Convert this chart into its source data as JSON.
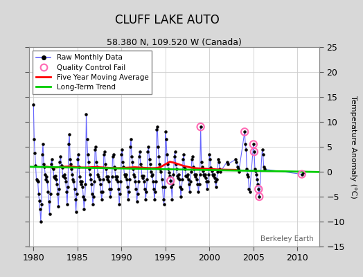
{
  "title": "CLUFF LAKE AUTO",
  "subtitle": "58.380 N, 109.520 W (Canada)",
  "ylabel": "Temperature Anomaly (°C)",
  "watermark": "Berkeley Earth",
  "xlim": [
    1979.5,
    2012.5
  ],
  "ylim": [
    -15,
    25
  ],
  "yticks": [
    -15,
    -10,
    -5,
    0,
    5,
    10,
    15,
    20,
    25
  ],
  "xticks": [
    1980,
    1985,
    1990,
    1995,
    2000,
    2005,
    2010
  ],
  "fig_bg_color": "#d8d8d8",
  "plot_bg_color": "#ffffff",
  "raw_line_color": "#6666ff",
  "raw_dot_color": "#000000",
  "qc_fail_color": "#ff69b4",
  "moving_avg_color": "#ff0000",
  "trend_color": "#00cc00",
  "raw_data": [
    [
      1980.0,
      13.5
    ],
    [
      1980.083,
      6.5
    ],
    [
      1980.167,
      3.8
    ],
    [
      1980.25,
      1.2
    ],
    [
      1980.333,
      -1.5
    ],
    [
      1980.417,
      -1.8
    ],
    [
      1980.5,
      -2.0
    ],
    [
      1980.583,
      -4.5
    ],
    [
      1980.667,
      -5.8
    ],
    [
      1980.75,
      -7.5
    ],
    [
      1980.833,
      -10.0
    ],
    [
      1980.917,
      -6.5
    ],
    [
      1981.0,
      3.5
    ],
    [
      1981.083,
      5.5
    ],
    [
      1981.167,
      1.5
    ],
    [
      1981.25,
      1.0
    ],
    [
      1981.333,
      -0.5
    ],
    [
      1981.417,
      -1.5
    ],
    [
      1981.5,
      -1.0
    ],
    [
      1981.583,
      -2.0
    ],
    [
      1981.667,
      -4.0
    ],
    [
      1981.75,
      -6.0
    ],
    [
      1981.833,
      -8.5
    ],
    [
      1981.917,
      -4.5
    ],
    [
      1982.0,
      1.5
    ],
    [
      1982.083,
      2.5
    ],
    [
      1982.167,
      0.8
    ],
    [
      1982.25,
      0.5
    ],
    [
      1982.333,
      -1.0
    ],
    [
      1982.417,
      -1.2
    ],
    [
      1982.5,
      -0.8
    ],
    [
      1982.583,
      -1.5
    ],
    [
      1982.667,
      -2.5
    ],
    [
      1982.75,
      -4.5
    ],
    [
      1982.833,
      -7.0
    ],
    [
      1982.917,
      -3.5
    ],
    [
      1983.0,
      2.0
    ],
    [
      1983.083,
      3.0
    ],
    [
      1983.167,
      1.2
    ],
    [
      1983.25,
      0.8
    ],
    [
      1983.333,
      -0.8
    ],
    [
      1983.417,
      -1.0
    ],
    [
      1983.5,
      -0.5
    ],
    [
      1983.583,
      -1.2
    ],
    [
      1983.667,
      -2.0
    ],
    [
      1983.75,
      -4.0
    ],
    [
      1983.833,
      -6.5
    ],
    [
      1983.917,
      -3.0
    ],
    [
      1984.0,
      5.5
    ],
    [
      1984.083,
      7.5
    ],
    [
      1984.167,
      2.5
    ],
    [
      1984.25,
      1.5
    ],
    [
      1984.333,
      0.5
    ],
    [
      1984.417,
      -0.5
    ],
    [
      1984.5,
      -1.5
    ],
    [
      1984.583,
      -2.0
    ],
    [
      1984.667,
      -3.5
    ],
    [
      1984.75,
      -5.5
    ],
    [
      1984.833,
      -8.0
    ],
    [
      1984.917,
      -4.5
    ],
    [
      1985.0,
      2.5
    ],
    [
      1985.083,
      3.5
    ],
    [
      1985.167,
      1.0
    ],
    [
      1985.25,
      -1.0
    ],
    [
      1985.333,
      -2.0
    ],
    [
      1985.417,
      -2.5
    ],
    [
      1985.5,
      -2.0
    ],
    [
      1985.583,
      -3.0
    ],
    [
      1985.667,
      -5.0
    ],
    [
      1985.75,
      -7.5
    ],
    [
      1985.833,
      -5.5
    ],
    [
      1985.917,
      -2.5
    ],
    [
      1986.0,
      11.5
    ],
    [
      1986.083,
      6.5
    ],
    [
      1986.167,
      3.5
    ],
    [
      1986.25,
      2.0
    ],
    [
      1986.333,
      0.5
    ],
    [
      1986.417,
      -0.5
    ],
    [
      1986.5,
      -1.5
    ],
    [
      1986.583,
      -2.5
    ],
    [
      1986.667,
      -4.5
    ],
    [
      1986.75,
      -6.5
    ],
    [
      1986.833,
      -5.0
    ],
    [
      1986.917,
      -2.0
    ],
    [
      1987.0,
      4.5
    ],
    [
      1987.083,
      5.0
    ],
    [
      1987.167,
      2.0
    ],
    [
      1987.25,
      1.0
    ],
    [
      1987.333,
      -0.5
    ],
    [
      1987.417,
      -1.0
    ],
    [
      1987.5,
      -1.5
    ],
    [
      1987.583,
      -2.5
    ],
    [
      1987.667,
      -4.0
    ],
    [
      1987.75,
      -5.5
    ],
    [
      1987.833,
      -4.0
    ],
    [
      1987.917,
      -1.5
    ],
    [
      1988.0,
      3.5
    ],
    [
      1988.083,
      4.0
    ],
    [
      1988.167,
      1.5
    ],
    [
      1988.25,
      0.5
    ],
    [
      1988.333,
      -1.0
    ],
    [
      1988.417,
      -1.5
    ],
    [
      1988.5,
      -1.0
    ],
    [
      1988.583,
      -2.0
    ],
    [
      1988.667,
      -3.5
    ],
    [
      1988.75,
      -5.0
    ],
    [
      1988.833,
      -3.5
    ],
    [
      1988.917,
      -1.0
    ],
    [
      1989.0,
      3.0
    ],
    [
      1989.083,
      3.5
    ],
    [
      1989.167,
      1.0
    ],
    [
      1989.25,
      0.5
    ],
    [
      1989.333,
      -1.0
    ],
    [
      1989.417,
      -1.5
    ],
    [
      1989.5,
      -1.0
    ],
    [
      1989.583,
      -2.0
    ],
    [
      1989.667,
      -3.5
    ],
    [
      1989.75,
      -6.5
    ],
    [
      1989.833,
      -4.5
    ],
    [
      1989.917,
      -2.0
    ],
    [
      1990.0,
      3.5
    ],
    [
      1990.083,
      4.5
    ],
    [
      1990.167,
      2.0
    ],
    [
      1990.25,
      1.0
    ],
    [
      1990.333,
      -0.5
    ],
    [
      1990.417,
      -1.0
    ],
    [
      1990.5,
      -0.5
    ],
    [
      1990.583,
      -1.5
    ],
    [
      1990.667,
      -3.0
    ],
    [
      1990.75,
      -5.5
    ],
    [
      1990.833,
      -4.0
    ],
    [
      1990.917,
      -1.5
    ],
    [
      1991.0,
      5.0
    ],
    [
      1991.083,
      6.5
    ],
    [
      1991.167,
      3.0
    ],
    [
      1991.25,
      2.0
    ],
    [
      1991.333,
      0.5
    ],
    [
      1991.417,
      -0.5
    ],
    [
      1991.5,
      -1.0
    ],
    [
      1991.583,
      -2.0
    ],
    [
      1991.667,
      -3.5
    ],
    [
      1991.75,
      -6.0
    ],
    [
      1991.833,
      -4.5
    ],
    [
      1991.917,
      -2.0
    ],
    [
      1992.0,
      3.0
    ],
    [
      1992.083,
      4.0
    ],
    [
      1992.167,
      1.5
    ],
    [
      1992.25,
      0.8
    ],
    [
      1992.333,
      -0.8
    ],
    [
      1992.417,
      -1.2
    ],
    [
      1992.5,
      -0.8
    ],
    [
      1992.583,
      -2.0
    ],
    [
      1992.667,
      -3.5
    ],
    [
      1992.75,
      -5.5
    ],
    [
      1992.833,
      -4.0
    ],
    [
      1992.917,
      -1.5
    ],
    [
      1993.0,
      4.0
    ],
    [
      1993.083,
      5.0
    ],
    [
      1993.167,
      2.5
    ],
    [
      1993.25,
      1.5
    ],
    [
      1993.333,
      0.0
    ],
    [
      1993.417,
      -0.8
    ],
    [
      1993.5,
      -0.5
    ],
    [
      1993.583,
      -2.0
    ],
    [
      1993.667,
      -3.5
    ],
    [
      1993.75,
      -5.5
    ],
    [
      1993.833,
      -4.0
    ],
    [
      1993.917,
      -2.0
    ],
    [
      1994.0,
      8.5
    ],
    [
      1994.083,
      9.0
    ],
    [
      1994.167,
      5.0
    ],
    [
      1994.25,
      3.0
    ],
    [
      1994.333,
      1.5
    ],
    [
      1994.417,
      0.5
    ],
    [
      1994.5,
      0.0
    ],
    [
      1994.583,
      -1.5
    ],
    [
      1994.667,
      -3.0
    ],
    [
      1994.75,
      -5.5
    ],
    [
      1994.833,
      -6.5
    ],
    [
      1994.917,
      -3.0
    ],
    [
      1995.0,
      8.0
    ],
    [
      1995.083,
      6.5
    ],
    [
      1995.167,
      3.5
    ],
    [
      1995.25,
      1.5
    ],
    [
      1995.333,
      0.5
    ],
    [
      1995.417,
      -0.2
    ],
    [
      1995.5,
      -0.8
    ],
    [
      1995.583,
      -1.8
    ],
    [
      1995.667,
      -3.0
    ],
    [
      1995.75,
      -5.5
    ],
    [
      1995.833,
      -2.5
    ],
    [
      1995.917,
      -0.5
    ],
    [
      1996.0,
      3.0
    ],
    [
      1996.083,
      4.0
    ],
    [
      1996.167,
      1.5
    ],
    [
      1996.25,
      0.5
    ],
    [
      1996.333,
      -0.8
    ],
    [
      1996.417,
      -1.2
    ],
    [
      1996.5,
      -0.5
    ],
    [
      1996.583,
      -1.5
    ],
    [
      1996.667,
      -3.0
    ],
    [
      1996.75,
      -5.0
    ],
    [
      1996.833,
      -3.5
    ],
    [
      1996.917,
      -1.5
    ],
    [
      1997.0,
      2.5
    ],
    [
      1997.083,
      3.5
    ],
    [
      1997.167,
      1.0
    ],
    [
      1997.25,
      0.5
    ],
    [
      1997.333,
      -0.8
    ],
    [
      1997.417,
      -1.0
    ],
    [
      1997.5,
      -0.5
    ],
    [
      1997.583,
      -1.5
    ],
    [
      1997.667,
      -2.5
    ],
    [
      1997.75,
      -4.0
    ],
    [
      1997.833,
      -2.0
    ],
    [
      1997.917,
      0.0
    ],
    [
      1998.0,
      2.5
    ],
    [
      1998.083,
      3.0
    ],
    [
      1998.167,
      1.0
    ],
    [
      1998.25,
      0.5
    ],
    [
      1998.333,
      -0.5
    ],
    [
      1998.417,
      -1.0
    ],
    [
      1998.5,
      -0.5
    ],
    [
      1998.583,
      -1.5
    ],
    [
      1998.667,
      -2.5
    ],
    [
      1998.75,
      -4.0
    ],
    [
      1998.833,
      -2.5
    ],
    [
      1998.917,
      -0.5
    ],
    [
      1999.0,
      9.0
    ],
    [
      1999.083,
      2.0
    ],
    [
      1999.167,
      1.0
    ],
    [
      1999.25,
      0.2
    ],
    [
      1999.333,
      -0.5
    ],
    [
      1999.417,
      -0.8
    ],
    [
      1999.5,
      -0.5
    ],
    [
      1999.583,
      -1.2
    ],
    [
      1999.667,
      -2.0
    ],
    [
      1999.75,
      -3.5
    ],
    [
      1999.833,
      -2.0
    ],
    [
      1999.917,
      -0.5
    ],
    [
      2000.0,
      3.5
    ],
    [
      2000.083,
      2.5
    ],
    [
      2000.167,
      0.8
    ],
    [
      2000.25,
      0.2
    ],
    [
      2000.333,
      -0.5
    ],
    [
      2000.417,
      -0.8
    ],
    [
      2000.5,
      -0.5
    ],
    [
      2000.583,
      -1.2
    ],
    [
      2000.667,
      -2.0
    ],
    [
      2000.75,
      -3.0
    ],
    [
      2000.833,
      -1.5
    ],
    [
      2000.917,
      0.0
    ],
    [
      2001.0,
      2.5
    ],
    [
      2001.083,
      2.0
    ],
    [
      2001.167,
      0.5
    ],
    [
      2001.25,
      0.0
    ],
    [
      2002.0,
      2.0
    ],
    [
      2002.083,
      1.5
    ],
    [
      2003.0,
      2.5
    ],
    [
      2003.083,
      2.0
    ],
    [
      2003.167,
      1.0
    ],
    [
      2003.25,
      0.5
    ],
    [
      2003.333,
      0.0
    ],
    [
      2004.0,
      8.0
    ],
    [
      2004.083,
      5.5
    ],
    [
      2004.167,
      4.5
    ],
    [
      2004.25,
      0.5
    ],
    [
      2004.333,
      -0.5
    ],
    [
      2004.417,
      -1.0
    ],
    [
      2004.5,
      -3.5
    ],
    [
      2004.583,
      -4.0
    ],
    [
      2005.0,
      5.5
    ],
    [
      2005.083,
      4.0
    ],
    [
      2005.167,
      0.5
    ],
    [
      2005.25,
      0.2
    ],
    [
      2005.333,
      -0.5
    ],
    [
      2005.417,
      -1.5
    ],
    [
      2005.5,
      -2.5
    ],
    [
      2005.583,
      -3.5
    ],
    [
      2005.667,
      -5.0
    ],
    [
      2006.0,
      4.5
    ],
    [
      2006.083,
      3.5
    ],
    [
      2006.167,
      1.0
    ],
    [
      2006.25,
      0.5
    ],
    [
      2010.5,
      -0.5
    ],
    [
      2010.667,
      -0.2
    ]
  ],
  "qc_fail_points": [
    [
      1995.583,
      -1.8
    ],
    [
      1999.0,
      9.0
    ],
    [
      2004.0,
      8.0
    ],
    [
      2005.0,
      5.5
    ],
    [
      2005.083,
      4.0
    ],
    [
      2005.583,
      -3.5
    ],
    [
      2005.667,
      -5.0
    ],
    [
      2010.5,
      -0.5
    ]
  ],
  "moving_avg": [
    [
      1981.5,
      1.0
    ],
    [
      1982.0,
      0.9
    ],
    [
      1982.5,
      0.85
    ],
    [
      1983.0,
      0.9
    ],
    [
      1983.5,
      1.0
    ],
    [
      1984.0,
      1.05
    ],
    [
      1984.5,
      1.0
    ],
    [
      1985.0,
      0.9
    ],
    [
      1985.5,
      0.85
    ],
    [
      1986.0,
      0.85
    ],
    [
      1986.5,
      0.9
    ],
    [
      1987.0,
      0.95
    ],
    [
      1987.5,
      0.9
    ],
    [
      1988.0,
      0.85
    ],
    [
      1988.5,
      0.8
    ],
    [
      1989.0,
      0.75
    ],
    [
      1989.5,
      0.72
    ],
    [
      1990.0,
      0.75
    ],
    [
      1990.5,
      0.8
    ],
    [
      1991.0,
      0.85
    ],
    [
      1991.5,
      0.9
    ],
    [
      1992.0,
      0.85
    ],
    [
      1992.5,
      0.8
    ],
    [
      1993.0,
      0.75
    ],
    [
      1993.5,
      0.72
    ],
    [
      1994.0,
      0.75
    ],
    [
      1994.5,
      1.0
    ],
    [
      1995.0,
      1.5
    ],
    [
      1995.5,
      2.0
    ],
    [
      1996.0,
      1.8
    ],
    [
      1996.5,
      1.5
    ],
    [
      1997.0,
      1.2
    ],
    [
      1997.5,
      1.0
    ],
    [
      1998.0,
      0.8
    ],
    [
      1998.5,
      0.7
    ],
    [
      1999.0,
      0.65
    ],
    [
      1999.5,
      0.6
    ],
    [
      2000.0,
      0.55
    ],
    [
      2000.5,
      0.5
    ],
    [
      2001.0,
      0.45
    ],
    [
      2002.0,
      0.4
    ],
    [
      2003.0,
      0.38
    ]
  ],
  "trend_line": [
    [
      1979.5,
      1.0
    ],
    [
      2012.5,
      -0.05
    ]
  ]
}
